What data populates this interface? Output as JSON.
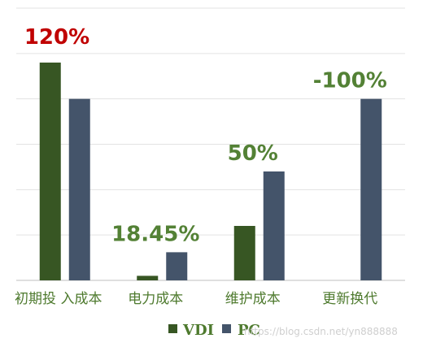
{
  "chart_data": {
    "type": "bar",
    "categories": [
      "初期投 入成本",
      "电力成本",
      "维护成本",
      "更新换代"
    ],
    "series": [
      {
        "name": "VDI",
        "values": [
          4.8,
          0.1,
          1.2,
          0
        ],
        "color": "#375623"
      },
      {
        "name": "PC",
        "values": [
          4.0,
          0.62,
          2.4,
          4.0
        ],
        "color": "#44546a"
      }
    ],
    "annotations": [
      "120%",
      "18.45%",
      "50%",
      "-100%"
    ],
    "annotation_colors": [
      "#c00000",
      "#538135",
      "#538135",
      "#538135"
    ],
    "ylim": [
      0,
      6
    ],
    "grid": true,
    "legend": "bottom",
    "category_label_color": "#4e7a2e"
  },
  "watermark": "https://blog.csdn.net/yn888888"
}
